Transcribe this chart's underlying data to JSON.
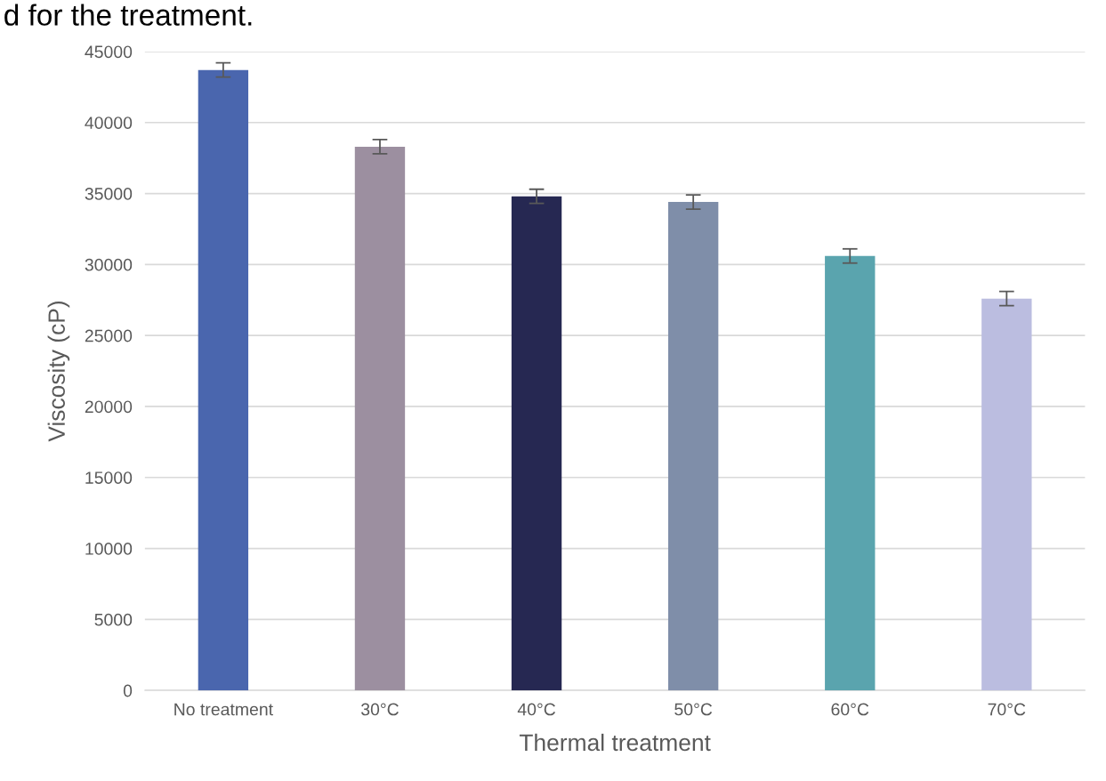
{
  "chart_data": {
    "type": "bar",
    "title": "d for the treatment.",
    "xlabel": "Thermal treatment",
    "ylabel": "Viscosity (cP)",
    "categories": [
      "No treatment",
      "30°C",
      "40°C",
      "50°C",
      "60°C",
      "70°C"
    ],
    "values": [
      43700,
      38300,
      34800,
      34400,
      30600,
      27600
    ],
    "errors": [
      500,
      500,
      500,
      500,
      500,
      500
    ],
    "colors": [
      "#4a66ae",
      "#9c8fa0",
      "#262852",
      "#7f8ea9",
      "#5aa4ae",
      "#bbbde0"
    ],
    "ylim": [
      0,
      45000
    ],
    "yticks": [
      0,
      5000,
      10000,
      15000,
      20000,
      25000,
      30000,
      35000,
      40000,
      45000
    ],
    "grid": "y"
  }
}
